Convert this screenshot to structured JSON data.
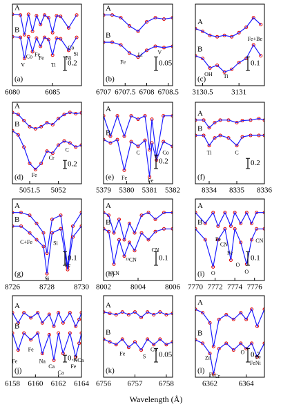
{
  "x_label": "Wavelength (Å)",
  "chart_data": [
    {
      "type": "line",
      "label": "(a)",
      "xlim": [
        6080,
        6088.6
      ],
      "xticks": [
        6080,
        6085
      ],
      "ylim": [
        0,
        1.2
      ],
      "scale_bar": 0.2,
      "marker_color": "#e00000",
      "x": [
        6080,
        6081,
        6081.5,
        6082,
        6082.5,
        6083,
        6083.5,
        6084,
        6084.5,
        6085,
        6085.5,
        6086,
        6087,
        6088
      ],
      "series": [
        {
          "name": "A",
          "color": "#1a1aff",
          "values": [
            1.05,
            1.04,
            0.75,
            1.05,
            0.8,
            1.03,
            0.9,
            1.04,
            1.0,
            0.78,
            1.03,
            1.02,
            0.85,
            1.04
          ]
        },
        {
          "name": "B",
          "color": "#1a1aff",
          "values": [
            0.72,
            0.71,
            0.4,
            0.72,
            0.5,
            0.7,
            0.58,
            0.71,
            0.68,
            0.45,
            0.7,
            0.69,
            0.52,
            0.71
          ]
        }
      ],
      "annotations": [
        {
          "text": "V",
          "x": 6081.3,
          "y": 0.3
        },
        {
          "text": "Co",
          "x": 6082.1,
          "y": 0.42
        },
        {
          "text": "Fe",
          "x": 6083.1,
          "y": 0.45
        },
        {
          "text": "Fe",
          "x": 6083.6,
          "y": 0.4
        },
        {
          "text": "Ti",
          "x": 6085.1,
          "y": 0.3
        },
        {
          "text": "Ni",
          "x": 6087,
          "y": 0.4
        },
        {
          "text": "Co",
          "x": 6087.3,
          "y": 0.55
        },
        {
          "text": "Si",
          "x": 6087.9,
          "y": 0.46
        }
      ]
    },
    {
      "type": "line",
      "label": "(b)",
      "xlim": [
        6707,
        6708.6
      ],
      "xticks": [
        6707,
        6707.5,
        6708,
        6708.5
      ],
      "ylim": [
        0,
        0.3
      ],
      "scale_bar": 0.05,
      "marker_color": "#e00000",
      "x": [
        6707,
        6707.2,
        6707.4,
        6707.6,
        6707.8,
        6708,
        6708.2,
        6708.4,
        6708.6
      ],
      "series": [
        {
          "name": "A",
          "color": "#1a1aff",
          "values": [
            0.26,
            0.26,
            0.25,
            0.22,
            0.2,
            0.235,
            0.25,
            0.245,
            0.25
          ]
        },
        {
          "name": "B",
          "color": "#1a1aff",
          "values": [
            0.16,
            0.16,
            0.15,
            0.12,
            0.105,
            0.13,
            0.145,
            0.14,
            0.145
          ]
        }
      ],
      "annotations": [
        {
          "text": "Fe",
          "x": 6707.45,
          "y": 0.085
        },
        {
          "text": "Li",
          "x": 6707.85,
          "y": 0.112
        },
        {
          "text": "V",
          "x": 6708.3,
          "y": 0.12
        }
      ]
    },
    {
      "type": "line",
      "label": "(c)",
      "xlim": [
        3130.4,
        3131.35
      ],
      "xticks": [
        3130.5,
        3131
      ],
      "ylim": [
        0,
        0.6
      ],
      "scale_bar": 0.1,
      "marker_color": "#e00000",
      "x": [
        3130.4,
        3130.5,
        3130.6,
        3130.7,
        3130.8,
        3130.9,
        3131,
        3131.1,
        3131.2,
        3131.3
      ],
      "series": [
        {
          "name": "A",
          "color": "#1a1aff",
          "values": [
            0.42,
            0.4,
            0.37,
            0.36,
            0.37,
            0.36,
            0.39,
            0.43,
            0.5,
            0.45
          ]
        },
        {
          "name": "B",
          "color": "#1a1aff",
          "values": [
            0.22,
            0.2,
            0.13,
            0.15,
            0.1,
            0.12,
            0.17,
            0.2,
            0.3,
            0.22
          ]
        }
      ],
      "annotations": [
        {
          "text": "OH",
          "x": 3130.58,
          "y": 0.08
        },
        {
          "text": "Ti",
          "x": 3130.82,
          "y": 0.065
        },
        {
          "text": "Fe+Be",
          "x": 3131.22,
          "y": 0.34
        }
      ]
    },
    {
      "type": "line",
      "label": "(d)",
      "xlim": [
        5051.2,
        5052.4
      ],
      "xticks": [
        5051.5,
        5052
      ],
      "ylim": [
        0,
        2.0
      ],
      "scale_bar": 0.2,
      "marker_color": "#e00000",
      "x": [
        5051.2,
        5051.3,
        5051.4,
        5051.5,
        5051.6,
        5051.7,
        5051.8,
        5051.9,
        5052,
        5052.1,
        5052.2,
        5052.3,
        5052.4
      ],
      "series": [
        {
          "name": "A",
          "color": "#1a1aff",
          "values": [
            1.75,
            1.7,
            1.55,
            1.4,
            1.35,
            1.4,
            1.5,
            1.45,
            1.6,
            1.7,
            1.75,
            1.72,
            1.74
          ]
        },
        {
          "name": "B",
          "color": "#1a1aff",
          "values": [
            1.3,
            1.2,
            0.9,
            0.5,
            0.35,
            0.5,
            0.8,
            0.75,
            0.95,
            1.05,
            1.0,
            0.9,
            0.95
          ]
        }
      ],
      "annotations": [
        {
          "text": "Fe",
          "x": 5051.58,
          "y": 0.2
        },
        {
          "text": "Cr",
          "x": 5051.88,
          "y": 0.62
        },
        {
          "text": "C",
          "x": 5052.15,
          "y": 0.82
        }
      ]
    },
    {
      "type": "line",
      "label": "(e)",
      "xlim": [
        5379,
        5382
      ],
      "xticks": [
        5379,
        5380,
        5381,
        5382
      ],
      "ylim": [
        0,
        1.2
      ],
      "scale_bar": 0.2,
      "marker_color": "#e00000",
      "x": [
        5379,
        5379.3,
        5379.6,
        5379.9,
        5380.2,
        5380.5,
        5380.8,
        5381,
        5381.1,
        5381.3,
        5381.6,
        5382
      ],
      "series": [
        {
          "name": "A",
          "color": "#1a1aff",
          "values": [
            1.0,
            0.7,
            1.0,
            0.7,
            1.0,
            0.95,
            1.0,
            0.5,
            0.95,
            0.4,
            1.0,
            1.0
          ]
        },
        {
          "name": "B",
          "color": "#1a1aff",
          "values": [
            0.65,
            0.6,
            0.65,
            0.2,
            0.62,
            0.55,
            0.64,
            0.1,
            0.6,
            0.35,
            0.62,
            0.55
          ]
        }
      ],
      "annotations": [
        {
          "text": "Fe",
          "x": 5379.9,
          "y": 0.08
        },
        {
          "text": "C",
          "x": 5380.5,
          "y": 0.45
        },
        {
          "text": "Fe",
          "x": 5381.05,
          "y": 0.04
        },
        {
          "text": "Co",
          "x": 5381.7,
          "y": 0.45
        }
      ]
    },
    {
      "type": "line",
      "label": "(f)",
      "xlim": [
        8333.5,
        8336
      ],
      "xticks": [
        8334,
        8335,
        8336
      ],
      "ylim": [
        0,
        1.6
      ],
      "scale_bar": 0.2,
      "marker_color": "#e00000",
      "x": [
        8333.5,
        8333.8,
        8334,
        8334.2,
        8334.4,
        8334.7,
        8335,
        8335.2,
        8335.5,
        8335.8,
        8336
      ],
      "series": [
        {
          "name": "A",
          "color": "#1a1aff",
          "values": [
            1.25,
            1.25,
            1.1,
            1.2,
            1.25,
            1.25,
            1.2,
            1.24,
            1.25,
            1.28,
            1.25
          ]
        },
        {
          "name": "B",
          "color": "#1a1aff",
          "values": [
            0.95,
            0.95,
            0.75,
            0.9,
            0.95,
            0.9,
            0.75,
            0.92,
            0.95,
            0.95,
            0.95
          ]
        }
      ],
      "annotations": [
        {
          "text": "Ti",
          "x": 8334,
          "y": 0.6
        },
        {
          "text": "C",
          "x": 8335,
          "y": 0.6
        }
      ]
    },
    {
      "type": "line",
      "label": "(g)",
      "xlim": [
        8726,
        8730
      ],
      "xticks": [
        8726,
        8728,
        8730
      ],
      "ylim": [
        0,
        0.6
      ],
      "scale_bar": 0.1,
      "marker_color": "#e00000",
      "x": [
        8726,
        8726.5,
        8727,
        8727.4,
        8727.8,
        8728,
        8728.3,
        8728.8,
        8729.2,
        8729.5,
        8730
      ],
      "series": [
        {
          "name": "A",
          "color": "#1a1aff",
          "values": [
            0.5,
            0.5,
            0.48,
            0.42,
            0.35,
            0.2,
            0.45,
            0.48,
            0.1,
            0.4,
            0.5
          ]
        },
        {
          "name": "B",
          "color": "#1a1aff",
          "values": [
            0.4,
            0.4,
            0.35,
            0.3,
            0.25,
            0.05,
            0.35,
            0.38,
            0.08,
            0.32,
            0.4
          ]
        }
      ],
      "annotations": [
        {
          "text": "C+Fe",
          "x": 8726.8,
          "y": 0.28
        },
        {
          "text": "Si",
          "x": 8728.5,
          "y": 0.27
        },
        {
          "text": "Si",
          "x": 8728,
          "y": 0.01
        },
        {
          "text": "Fe",
          "x": 8729.2,
          "y": 0.11
        }
      ]
    },
    {
      "type": "line",
      "label": "(h)",
      "xlim": [
        8002,
        8006
      ],
      "xticks": [
        8002,
        8004,
        8006
      ],
      "ylim": [
        0,
        0.6
      ],
      "scale_bar": 0.1,
      "marker_color": "#e00000",
      "x": [
        8002,
        8002.3,
        8002.6,
        8002.9,
        8003.2,
        8003.5,
        8003.8,
        8004.2,
        8004.6,
        8005,
        8005.5,
        8006
      ],
      "series": [
        {
          "name": "A",
          "color": "#1a1aff",
          "values": [
            0.5,
            0.48,
            0.35,
            0.45,
            0.3,
            0.42,
            0.35,
            0.48,
            0.5,
            0.45,
            0.5,
            0.5
          ]
        },
        {
          "name": "B",
          "color": "#1a1aff",
          "values": [
            0.38,
            0.36,
            0.12,
            0.3,
            0.18,
            0.28,
            0.22,
            0.35,
            0.3,
            0.36,
            0.38,
            0.38
          ]
        }
      ],
      "annotations": [
        {
          "text": "¹²CN",
          "x": 8002.6,
          "y": 0.05
        },
        {
          "text": "¹³CN",
          "x": 8003.6,
          "y": 0.15
        },
        {
          "text": "CN",
          "x": 8005,
          "y": 0.22
        }
      ]
    },
    {
      "type": "line",
      "label": "(i)",
      "xlim": [
        7770,
        7777
      ],
      "xticks": [
        7770,
        7772,
        7774,
        7776
      ],
      "ylim": [
        0,
        0.6
      ],
      "scale_bar": 0.1,
      "marker_color": "#e00000",
      "x": [
        7770,
        7771,
        7771.8,
        7772.3,
        7773,
        7773.6,
        7774,
        7774.6,
        7775.2,
        7775.7,
        7776.2,
        7777
      ],
      "series": [
        {
          "name": "A",
          "color": "#1a1aff",
          "values": [
            0.5,
            0.42,
            0.5,
            0.4,
            0.5,
            0.4,
            0.5,
            0.42,
            0.5,
            0.42,
            0.5,
            0.5
          ]
        },
        {
          "name": "B",
          "color": "#1a1aff",
          "values": [
            0.38,
            0.3,
            0.1,
            0.3,
            0.38,
            0.15,
            0.38,
            0.28,
            0.12,
            0.3,
            0.38,
            0.38
          ]
        }
      ],
      "annotations": [
        {
          "text": "O",
          "x": 7771.8,
          "y": 0.05
        },
        {
          "text": "Fe",
          "x": 7772.3,
          "y": 0.3
        },
        {
          "text": "CN",
          "x": 7772.9,
          "y": 0.26
        },
        {
          "text": "Fe",
          "x": 7773.5,
          "y": 0.2
        },
        {
          "text": "O",
          "x": 7774.3,
          "y": 0.11
        },
        {
          "text": "O",
          "x": 7775.2,
          "y": 0.06
        },
        {
          "text": "CN",
          "x": 7776.5,
          "y": 0.29
        }
      ]
    },
    {
      "type": "line",
      "label": "(j)",
      "xlim": [
        6158,
        6164
      ],
      "xticks": [
        6158,
        6160,
        6162,
        6164
      ],
      "ylim": [
        0,
        2.4
      ],
      "scale_bar": 0.2,
      "marker_color": "#e00000",
      "x": [
        6158,
        6158.5,
        6159,
        6159.6,
        6160.2,
        6160.6,
        6161.2,
        6161.6,
        6162,
        6162.4,
        6163,
        6163.5,
        6163.8,
        6164
      ],
      "series": [
        {
          "name": "A",
          "color": "#1a1aff",
          "values": [
            1.9,
            1.6,
            1.9,
            1.75,
            1.9,
            1.6,
            1.85,
            1.5,
            1.9,
            1.6,
            1.9,
            1.5,
            1.7,
            1.9
          ]
        },
        {
          "name": "B",
          "color": "#1a1aff",
          "values": [
            1.3,
            0.8,
            1.3,
            1.1,
            1.3,
            0.7,
            1.25,
            0.5,
            1.3,
            0.7,
            1.3,
            0.6,
            1.0,
            1.3
          ]
        }
      ],
      "annotations": [
        {
          "text": "Fe",
          "x": 6158.2,
          "y": 0.45
        },
        {
          "text": "Fe",
          "x": 6159.6,
          "y": 0.8
        },
        {
          "text": "Na",
          "x": 6160.6,
          "y": 0.45
        },
        {
          "text": "Ca",
          "x": 6161.4,
          "y": 0.3
        },
        {
          "text": "Ca",
          "x": 6162.2,
          "y": 0.12
        },
        {
          "text": "Fe",
          "x": 6163.3,
          "y": 0.3
        },
        {
          "text": "NCa",
          "x": 6163.75,
          "y": 0.48
        }
      ]
    },
    {
      "type": "line",
      "label": "(k)",
      "xlim": [
        6756,
        6758.2
      ],
      "xticks": [
        6756,
        6757,
        6758
      ],
      "ylim": [
        0,
        0.3
      ],
      "scale_bar": 0.05,
      "marker_color": "#e00000",
      "x": [
        6756,
        6756.2,
        6756.4,
        6756.6,
        6756.8,
        6757,
        6757.2,
        6757.4,
        6757.6,
        6757.8,
        6758,
        6758.2
      ],
      "series": [
        {
          "name": "A",
          "color": "#1a1aff",
          "values": [
            0.24,
            0.235,
            0.23,
            0.24,
            0.23,
            0.24,
            0.22,
            0.24,
            0.23,
            0.24,
            0.23,
            0.235
          ]
        },
        {
          "name": "B",
          "color": "#1a1aff",
          "values": [
            0.14,
            0.13,
            0.12,
            0.14,
            0.11,
            0.13,
            0.1,
            0.14,
            0.12,
            0.14,
            0.12,
            0.13
          ]
        }
      ],
      "annotations": [
        {
          "text": "Fe",
          "x": 6756.6,
          "y": 0.085
        },
        {
          "text": "S",
          "x": 6757.3,
          "y": 0.075
        },
        {
          "text": "Co",
          "x": 6757.6,
          "y": 0.1
        }
      ]
    },
    {
      "type": "line",
      "label": "(l)",
      "xlim": [
        6361.2,
        6365
      ],
      "xticks": [
        6362,
        6364
      ],
      "ylim": [
        0,
        1.2
      ],
      "scale_bar": 0.2,
      "marker_color": "#e00000",
      "x": [
        6361.2,
        6361.6,
        6362,
        6362.2,
        6362.5,
        6362.9,
        6363.3,
        6363.7,
        6364,
        6364.3,
        6364.6,
        6365
      ],
      "series": [
        {
          "name": "A",
          "color": "#1a1aff",
          "values": [
            1.0,
            0.95,
            0.8,
            0.45,
            0.85,
            0.92,
            0.85,
            0.95,
            0.85,
            1.0,
            0.75,
            1.0
          ]
        },
        {
          "name": "B",
          "color": "#1a1aff",
          "values": [
            0.55,
            0.5,
            0.35,
            0.05,
            0.42,
            0.5,
            0.4,
            0.5,
            0.42,
            0.5,
            0.3,
            0.5
          ]
        }
      ],
      "annotations": [
        {
          "text": "Zn",
          "x": 6361.9,
          "y": 0.28
        },
        {
          "text": "Fe",
          "x": 6362.1,
          "y": 0.03
        },
        {
          "text": "Cr",
          "x": 6362.4,
          "y": 0.01
        },
        {
          "text": "O",
          "x": 6363.8,
          "y": 0.36
        },
        {
          "text": "FeNi",
          "x": 6364.5,
          "y": 0.2
        },
        {
          "text": "Fe",
          "x": 6364.65,
          "y": 0.29
        }
      ]
    }
  ]
}
